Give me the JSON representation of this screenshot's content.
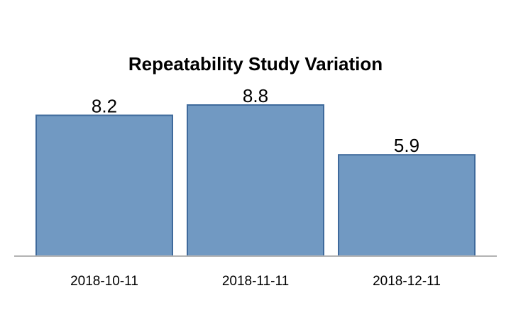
{
  "chart_data": {
    "type": "bar",
    "title": "Repeatability Study Variation",
    "categories": [
      "2018-10-11",
      "2018-11-11",
      "2018-12-11"
    ],
    "values": [
      8.2,
      8.8,
      5.9
    ],
    "data_labels": [
      "8.2",
      "8.8",
      "5.9"
    ],
    "xlabel": "",
    "ylabel": "",
    "ylim": [
      0,
      8.8
    ],
    "grid": false,
    "legend": "none",
    "colors": {
      "bar_fill": "#7199c2",
      "bar_stroke": "#3f6a9c",
      "axis_line": "#b3b3b3"
    }
  }
}
